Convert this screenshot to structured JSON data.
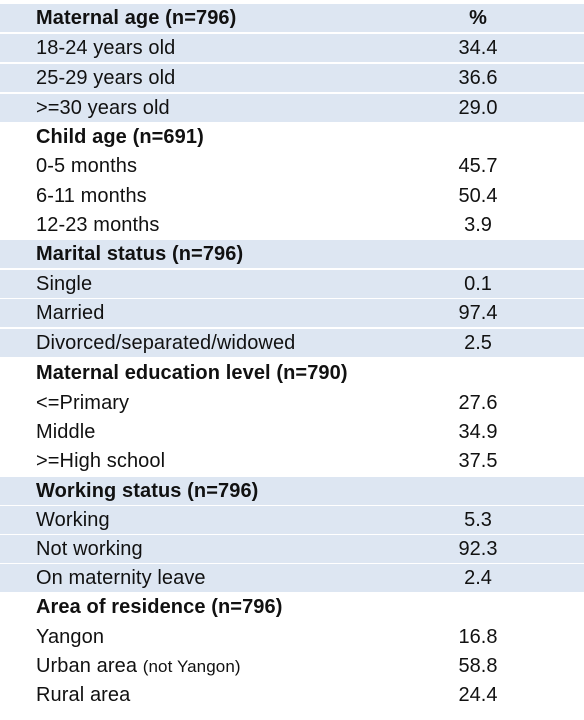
{
  "table": {
    "header_col": "%",
    "sections": [
      {
        "title": "Maternal age (n=796)",
        "rows": [
          {
            "label": "18-24 years old",
            "value": "34.4"
          },
          {
            "label": "25-29 years old",
            "value": "36.6"
          },
          {
            "label": ">=30 years old",
            "value": "29.0"
          }
        ]
      },
      {
        "title": "Child age (n=691)",
        "rows": [
          {
            "label": "0-5 months",
            "value": "45.7"
          },
          {
            "label": "6-11 months",
            "value": "50.4"
          },
          {
            "label": "12-23 months",
            "value": "3.9"
          }
        ]
      },
      {
        "title": "Marital status (n=796)",
        "rows": [
          {
            "label": "Single",
            "value": "0.1"
          },
          {
            "label": "Married",
            "value": "97.4"
          },
          {
            "label": "Divorced/separated/widowed",
            "value": "2.5"
          }
        ]
      },
      {
        "title": "Maternal education level (n=790)",
        "rows": [
          {
            "label": "<=Primary",
            "value": "27.6"
          },
          {
            "label": "Middle",
            "value": "34.9"
          },
          {
            "label": ">=High school",
            "value": "37.5"
          }
        ]
      },
      {
        "title": "Working status (n=796)",
        "rows": [
          {
            "label": "Working",
            "value": "5.3"
          },
          {
            "label": "Not working",
            "value": "92.3"
          },
          {
            "label": "On maternity leave",
            "value": "2.4"
          }
        ]
      },
      {
        "title": "Area of residence (n=796)",
        "rows": [
          {
            "label": "Yangon",
            "value": "16.8"
          },
          {
            "label": "Urban area",
            "label_note": "(not Yangon)",
            "value": "58.8"
          },
          {
            "label": "Rural area",
            "value": "24.4"
          }
        ]
      }
    ]
  },
  "colors": {
    "shade": "#dde6f2",
    "text": "#111111"
  }
}
